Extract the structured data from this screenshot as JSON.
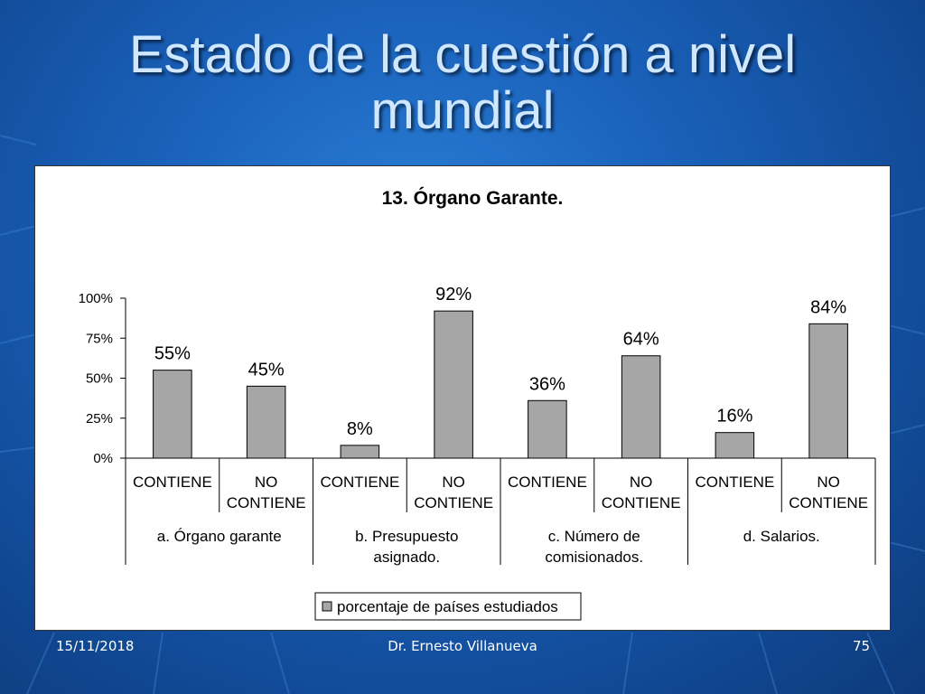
{
  "slide": {
    "title_line1": "Estado de la cuestión a nivel",
    "title_line2": "mundial"
  },
  "footer": {
    "date": "15/11/2018",
    "author": "Dr. Ernesto Villanueva",
    "page": "75"
  },
  "colors": {
    "bar_fill": "#a6a6a6",
    "bar_stroke": "#000000"
  },
  "chart_data": {
    "type": "bar",
    "title": "13. Órgano Garante.",
    "y_ticks": [
      "0%",
      "25%",
      "50%",
      "75%",
      "100%"
    ],
    "ylim": [
      0,
      100
    ],
    "categories": [
      {
        "sub": [
          "CONTIENE",
          ""
        ],
        "group": "a. Órgano garante"
      },
      {
        "sub": [
          "NO",
          "CONTIENE"
        ],
        "group": "a. Órgano garante"
      },
      {
        "sub": [
          "CONTIENE",
          ""
        ],
        "group": "b. Presupuesto asignado."
      },
      {
        "sub": [
          "NO",
          "CONTIENE"
        ],
        "group": "b. Presupuesto asignado."
      },
      {
        "sub": [
          "CONTIENE",
          ""
        ],
        "group": "c. Número de comisionados."
      },
      {
        "sub": [
          "NO",
          "CONTIENE"
        ],
        "group": "c. Número de comisionados."
      },
      {
        "sub": [
          "CONTIENE",
          ""
        ],
        "group": "d. Salarios."
      },
      {
        "sub": [
          "NO",
          "CONTIENE"
        ],
        "group": "d. Salarios."
      }
    ],
    "groups": [
      {
        "line1": "a. Órgano garante",
        "line2": ""
      },
      {
        "line1": "b. Presupuesto",
        "line2": "asignado."
      },
      {
        "line1": "c. Número de",
        "line2": "comisionados."
      },
      {
        "line1": "d. Salarios.",
        "line2": ""
      }
    ],
    "series": [
      {
        "name": "porcentaje de países estudiados",
        "values": [
          55,
          45,
          8,
          92,
          36,
          64,
          16,
          84
        ],
        "labels": [
          "55%",
          "45%",
          "8%",
          "92%",
          "36%",
          "64%",
          "16%",
          "84%"
        ]
      }
    ],
    "legend_position": "bottom"
  }
}
